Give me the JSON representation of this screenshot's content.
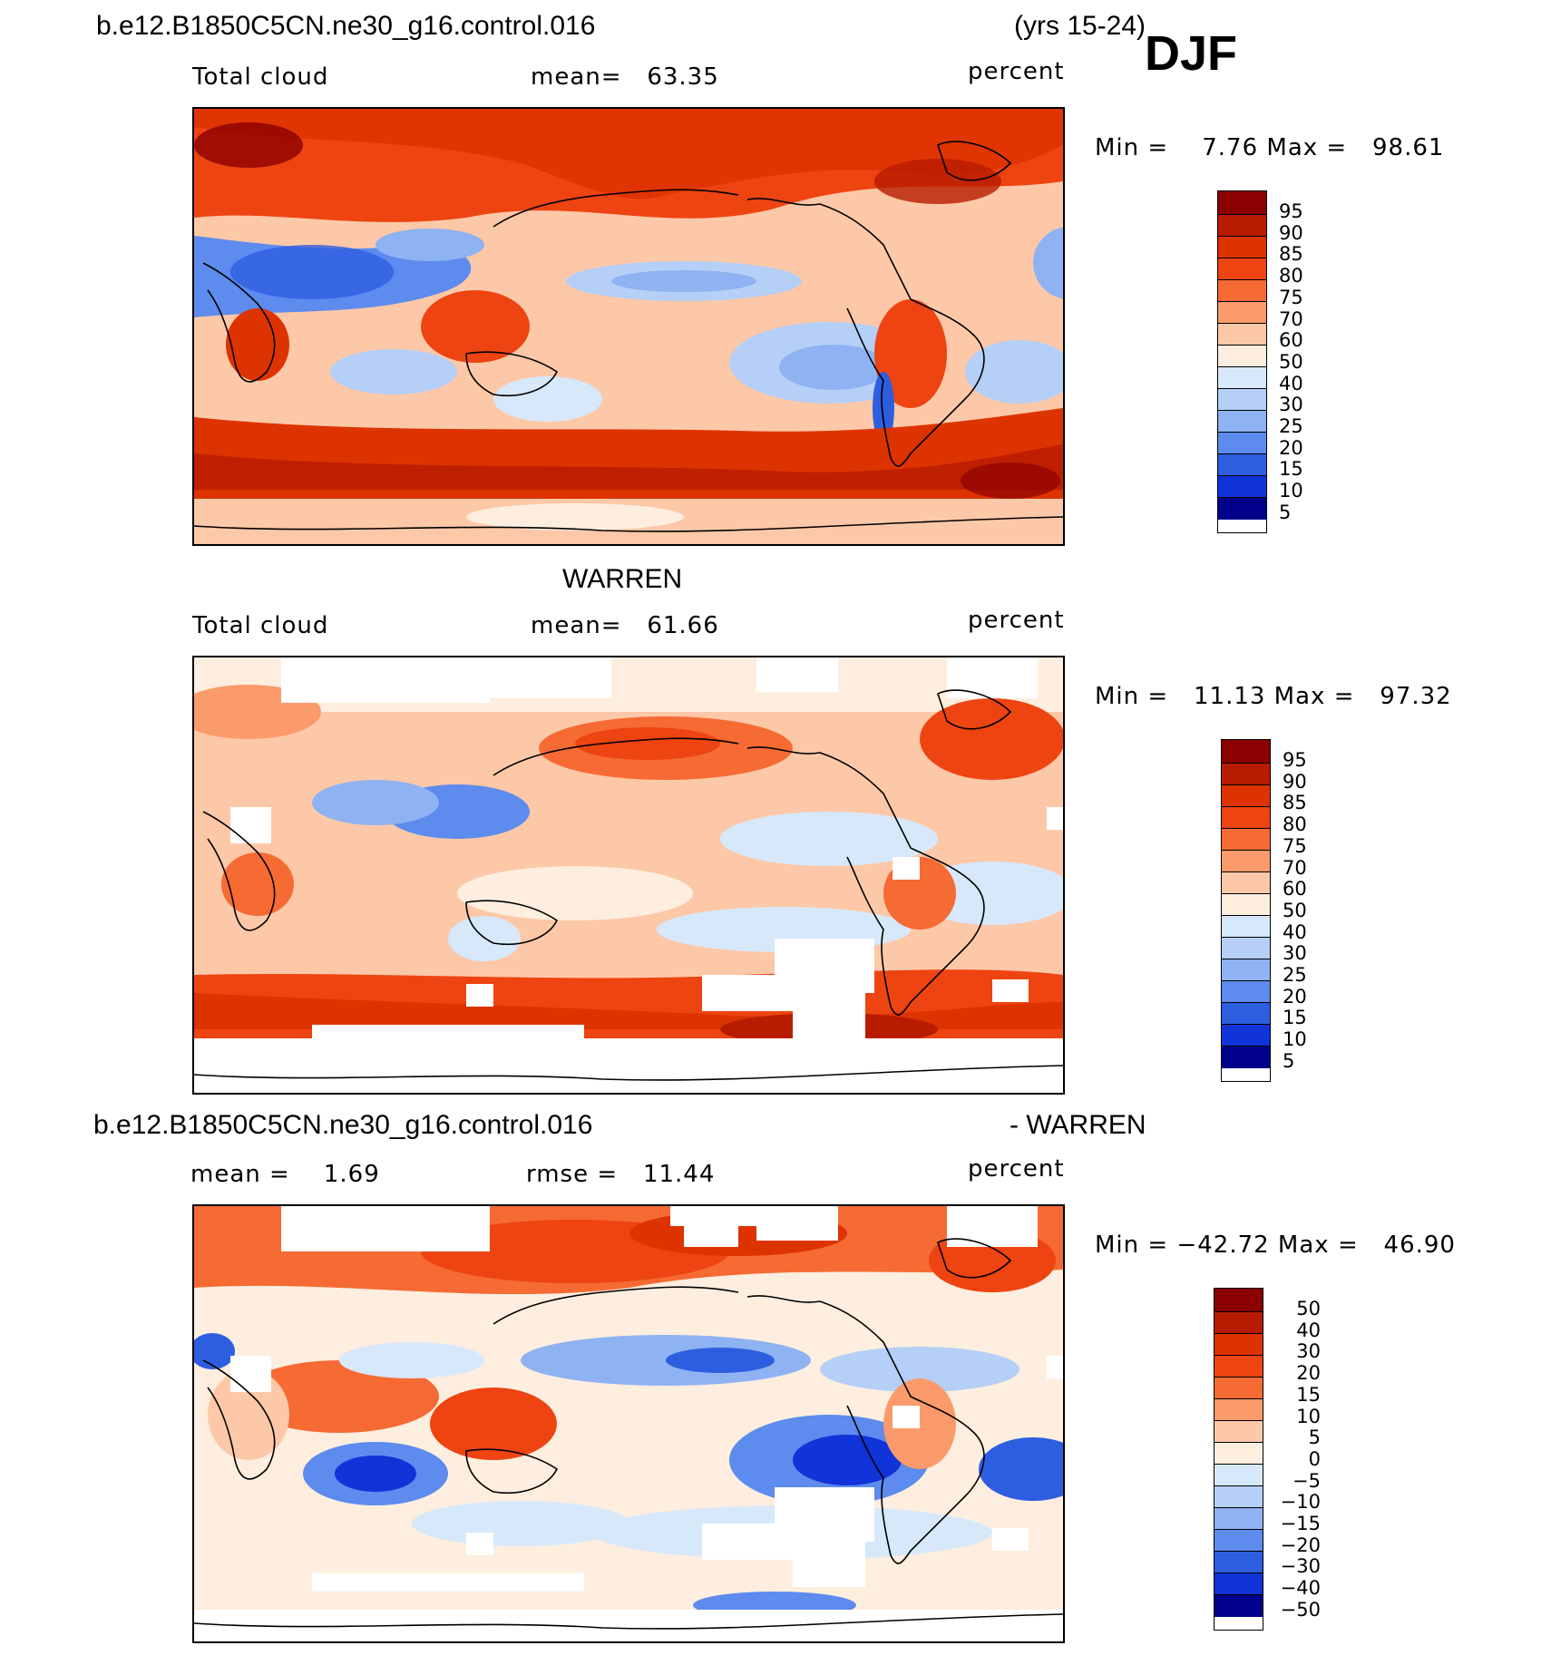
{
  "header": {
    "case_name": "b.e12.B1850C5CN.ne30_g16.control.016",
    "years": "(yrs 15-24)",
    "season": "DJF"
  },
  "panels": [
    {
      "id": "model",
      "title": "",
      "left_label": "Total cloud",
      "mean_text": "mean=   63.35",
      "units": "percent",
      "minmax": "Min =    7.76 Max =   98.61",
      "colorbar_labels": [
        "95",
        "90",
        "85",
        "80",
        "75",
        "70",
        "60",
        "50",
        "40",
        "30",
        "25",
        "20",
        "15",
        "10",
        "5"
      ],
      "colorbar_colors": [
        "#8b0000",
        "#b81c00",
        "#dd3300",
        "#ee4411",
        "#f66a33",
        "#fb9a6a",
        "#fdc8a8",
        "#fdeedf",
        "#d7e8fb",
        "#b5cff7",
        "#8eb2f2",
        "#5d8bee",
        "#2e5ee0",
        "#1034d8",
        "#00008a"
      ]
    },
    {
      "id": "obs",
      "title": "WARREN",
      "left_label": "Total cloud",
      "mean_text": "mean=   61.66",
      "units": "percent",
      "minmax": "Min =   11.13 Max =   97.32",
      "colorbar_labels": [
        "95",
        "90",
        "85",
        "80",
        "75",
        "70",
        "60",
        "50",
        "40",
        "30",
        "25",
        "20",
        "15",
        "10",
        "5"
      ],
      "colorbar_colors": [
        "#8b0000",
        "#b81c00",
        "#dd3300",
        "#ee4411",
        "#f66a33",
        "#fb9a6a",
        "#fdc8a8",
        "#fdeedf",
        "#d7e8fb",
        "#b5cff7",
        "#8eb2f2",
        "#5d8bee",
        "#2e5ee0",
        "#1034d8",
        "#00008a"
      ]
    },
    {
      "id": "diff",
      "title_left": "b.e12.B1850C5CN.ne30_g16.control.016",
      "title_right": "- WARREN",
      "left_label": "mean =    1.69",
      "mean_text": "rmse =   11.44",
      "units": "percent",
      "minmax": "Min = −42.72 Max =   46.90",
      "colorbar_labels": [
        "50",
        "40",
        "30",
        "20",
        "15",
        "10",
        "5",
        "0",
        "−5",
        "−10",
        "−15",
        "−20",
        "−30",
        "−40",
        "−50"
      ],
      "colorbar_colors": [
        "#8b0000",
        "#b81c00",
        "#dd3300",
        "#ee4411",
        "#f66a33",
        "#fb9a6a",
        "#fdc8a8",
        "#fdeedf",
        "#d7e8fb",
        "#b5cff7",
        "#8eb2f2",
        "#5d8bee",
        "#2e5ee0",
        "#1034d8",
        "#00008a"
      ]
    }
  ]
}
